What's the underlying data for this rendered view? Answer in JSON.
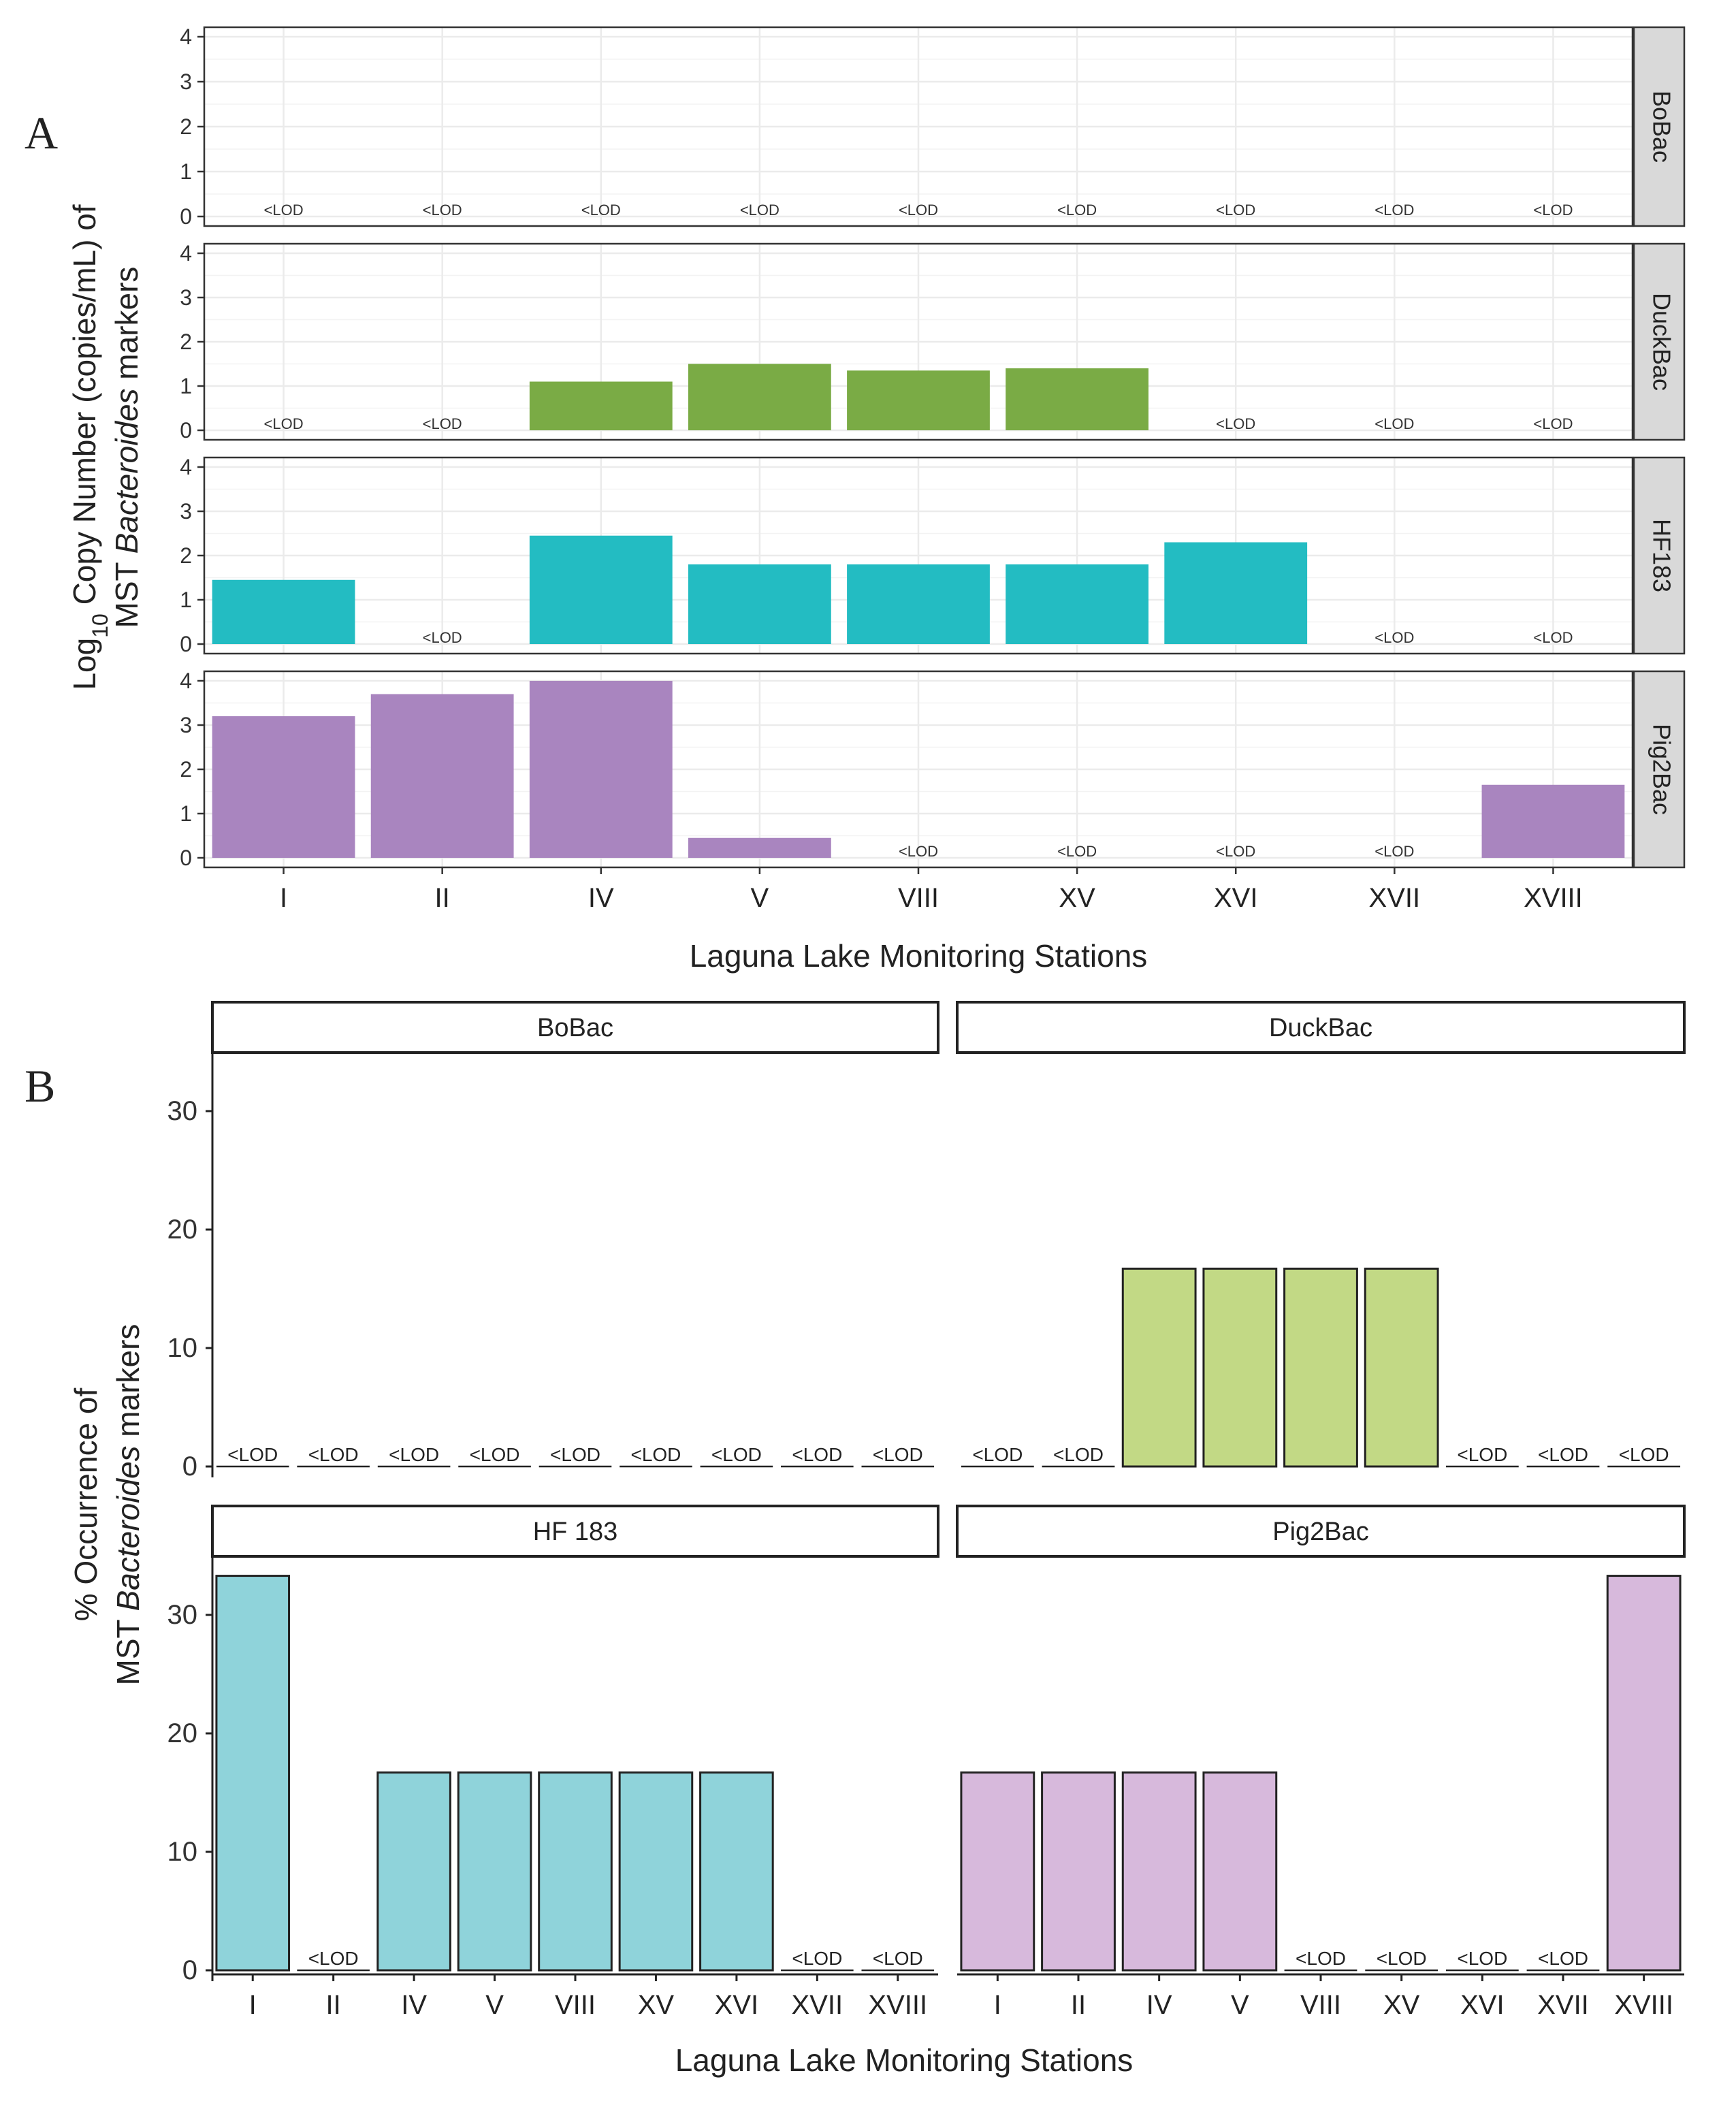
{
  "figure": {
    "panel_a_letter": "A",
    "panel_b_letter": "B",
    "lod_label": "<LOD",
    "colors": {
      "BoBac_a": "#7aab45",
      "DuckBac_a": "#7aab45",
      "HF183_a": "#23bcc2",
      "Pig2Bac_a": "#a985bf",
      "DuckBac_b": "#c2d985",
      "HF183_b": "#8fd3da",
      "Pig2Bac_b": "#d7b9dc",
      "strip_a": "#d9d9d9",
      "grid": "#ebebeb"
    }
  },
  "chart_data": [
    {
      "id": "A",
      "type": "bar",
      "layout": "faceted rows, shared x axis",
      "title": "",
      "xlabel": "Laguna Lake Monitoring Stations",
      "ylabel_parts": {
        "line1_pre": "Log",
        "line1_sub": "10",
        "line1_post": " Copy Number (copies/mL) of",
        "line2_pre": "MST ",
        "line2_italic": "Bacteroides",
        "line2_post": " markers"
      },
      "ylim": [
        0,
        4
      ],
      "yticks": [
        "0",
        "1",
        "2",
        "3",
        "4"
      ],
      "grid": true,
      "categories": [
        "I",
        "II",
        "IV",
        "V",
        "VIII",
        "XV",
        "XVI",
        "XVII",
        "XVIII"
      ],
      "series": [
        {
          "name": "BoBac",
          "values": [
            null,
            null,
            null,
            null,
            null,
            null,
            null,
            null,
            null
          ]
        },
        {
          "name": "DuckBac",
          "values": [
            null,
            null,
            1.1,
            1.5,
            1.35,
            1.4,
            null,
            null,
            null
          ]
        },
        {
          "name": "HF183",
          "values": [
            1.45,
            null,
            2.45,
            1.8,
            1.8,
            1.8,
            2.3,
            null,
            null
          ]
        },
        {
          "name": "Pig2Bac",
          "values": [
            3.2,
            3.7,
            4.0,
            0.45,
            null,
            null,
            null,
            null,
            1.65
          ]
        }
      ],
      "null_label": "<LOD"
    },
    {
      "id": "B",
      "type": "bar",
      "layout": "2x2 facets",
      "title": "",
      "xlabel": "Laguna Lake Monitoring Stations",
      "ylabel_parts": {
        "line1": "% Occurrence of",
        "line2_pre": "MST ",
        "line2_italic": "Bacteroides",
        "line2_post": " markers"
      },
      "ylim": [
        0,
        35
      ],
      "yticks": [
        "0",
        "10",
        "20",
        "30"
      ],
      "grid": false,
      "categories": [
        "I",
        "II",
        "IV",
        "V",
        "VIII",
        "XV",
        "XVI",
        "XVII",
        "XVIII"
      ],
      "series": [
        {
          "name": "BoBac",
          "label": "BoBac",
          "values": [
            null,
            null,
            null,
            null,
            null,
            null,
            null,
            null,
            null
          ]
        },
        {
          "name": "DuckBac",
          "label": "DuckBac",
          "values": [
            null,
            null,
            16.7,
            16.7,
            16.7,
            16.7,
            null,
            null,
            null
          ]
        },
        {
          "name": "HF183",
          "label": "HF 183",
          "values": [
            33.3,
            null,
            16.7,
            16.7,
            16.7,
            16.7,
            16.7,
            null,
            null
          ]
        },
        {
          "name": "Pig2Bac",
          "label": "Pig2Bac",
          "values": [
            16.7,
            16.7,
            16.7,
            16.7,
            null,
            null,
            null,
            null,
            33.3
          ]
        }
      ],
      "null_label": "<LOD"
    }
  ]
}
